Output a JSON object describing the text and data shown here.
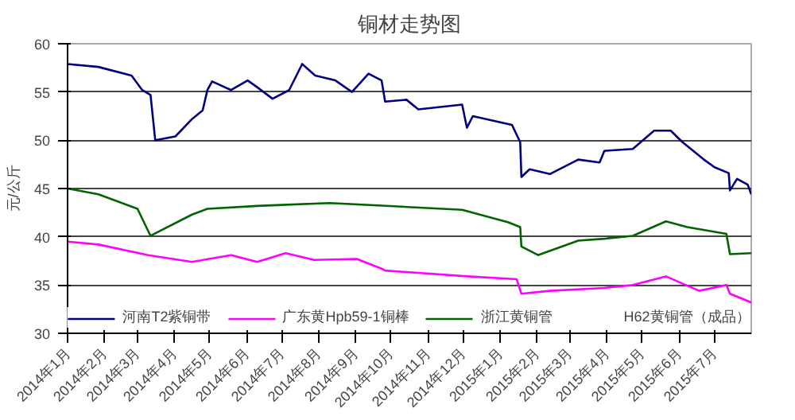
{
  "chart_data": {
    "type": "line",
    "title": "铜材走势图",
    "ylabel": "元/公斤",
    "xlim": [
      "2014-01-01",
      "2015-08-01"
    ],
    "xticks": [
      {
        "value": "2014-01-01",
        "label": "2014年1月"
      },
      {
        "value": "2014-02-01",
        "label": "2014年2月"
      },
      {
        "value": "2014-03-01",
        "label": "2014年3月"
      },
      {
        "value": "2014-04-01",
        "label": "2014年4月"
      },
      {
        "value": "2014-05-01",
        "label": "2014年5月"
      },
      {
        "value": "2014-06-01",
        "label": "2014年6月"
      },
      {
        "value": "2014-07-01",
        "label": "2014年7月"
      },
      {
        "value": "2014-08-01",
        "label": "2014年8月"
      },
      {
        "value": "2014-09-01",
        "label": "2014年9月"
      },
      {
        "value": "2014-10-01",
        "label": "2014年10月"
      },
      {
        "value": "2014-11-01",
        "label": "2014年11月"
      },
      {
        "value": "2014-12-01",
        "label": "2014年12月"
      },
      {
        "value": "2015-01-01",
        "label": "2015年1月"
      },
      {
        "value": "2015-02-01",
        "label": "2015年2月"
      },
      {
        "value": "2015-03-01",
        "label": "2015年3月"
      },
      {
        "value": "2015-04-01",
        "label": "2015年4月"
      },
      {
        "value": "2015-05-01",
        "label": "2015年5月"
      },
      {
        "value": "2015-06-01",
        "label": "2015年6月"
      },
      {
        "value": "2015-07-01",
        "label": "2015年7月"
      }
    ],
    "ylim": [
      30,
      60
    ],
    "yticks": [
      30,
      35,
      40,
      45,
      50,
      55,
      60
    ],
    "grid": "y",
    "legend": "bottom",
    "marker": "none",
    "line_style": "solid",
    "series": [
      {
        "name": "河南T2紫铜带",
        "color": "#000080",
        "x": [
          "2014-01-01",
          "2014-01-27",
          "2014-02-24",
          "2014-03-05",
          "2014-03-12",
          "2014-03-16",
          "2014-04-02",
          "2014-04-16",
          "2014-04-25",
          "2014-04-29",
          "2014-05-03",
          "2014-05-19",
          "2014-06-02",
          "2014-06-10",
          "2014-06-23",
          "2014-07-07",
          "2014-07-18",
          "2014-07-29",
          "2014-08-15",
          "2014-08-29",
          "2014-09-12",
          "2014-09-23",
          "2014-09-26",
          "2014-10-14",
          "2014-10-24",
          "2014-11-30",
          "2014-12-04",
          "2014-12-09",
          "2015-01-11",
          "2015-01-18",
          "2015-01-19",
          "2015-01-26",
          "2015-02-12",
          "2015-03-08",
          "2015-03-26",
          "2015-03-30",
          "2015-04-23",
          "2015-05-11",
          "2015-05-25",
          "2015-06-04",
          "2015-06-22",
          "2015-07-01",
          "2015-07-13",
          "2015-07-14",
          "2015-07-20",
          "2015-07-29",
          "2015-08-01"
        ],
        "values": [
          57.9,
          57.6,
          56.7,
          55.2,
          54.7,
          50.0,
          50.4,
          52.2,
          53.1,
          55.2,
          56.1,
          55.2,
          56.2,
          55.5,
          54.3,
          55.2,
          57.9,
          56.7,
          56.2,
          55.0,
          56.9,
          56.2,
          54.0,
          54.2,
          53.2,
          53.7,
          51.3,
          52.5,
          51.6,
          49.8,
          46.2,
          47.0,
          46.5,
          48.0,
          47.7,
          48.9,
          49.1,
          51.0,
          51.0,
          49.8,
          48.0,
          47.2,
          46.6,
          44.8,
          46.0,
          45.4,
          44.4
        ]
      },
      {
        "name": "广东黄Hpb59-1铜棒",
        "color": "#ff00ff",
        "x": [
          "2014-01-01",
          "2014-01-27",
          "2014-03-10",
          "2014-04-16",
          "2014-05-19",
          "2014-06-10",
          "2014-07-04",
          "2014-07-28",
          "2014-09-02",
          "2014-09-23",
          "2014-09-26",
          "2014-12-04",
          "2015-01-15",
          "2015-01-19",
          "2015-02-12",
          "2015-03-30",
          "2015-04-23",
          "2015-05-21",
          "2015-06-18",
          "2015-07-11",
          "2015-07-14",
          "2015-08-01"
        ],
        "values": [
          39.5,
          39.2,
          38.1,
          37.4,
          38.1,
          37.4,
          38.3,
          37.6,
          37.7,
          36.7,
          36.5,
          35.9,
          35.6,
          34.1,
          34.4,
          34.7,
          35.0,
          35.9,
          34.4,
          35.0,
          34.1,
          33.2
        ]
      },
      {
        "name": "浙江黄铜管",
        "color": "#006400",
        "x": [
          "2014-01-01",
          "2014-01-27",
          "2014-03-01",
          "2014-03-12",
          "2014-04-16",
          "2014-04-29",
          "2014-06-10",
          "2014-08-10",
          "2014-11-30",
          "2015-01-08",
          "2015-01-18",
          "2015-01-19",
          "2015-02-02",
          "2015-03-08",
          "2015-03-30",
          "2015-04-23",
          "2015-05-21",
          "2015-06-08",
          "2015-07-11",
          "2015-07-14",
          "2015-08-01"
        ],
        "values": [
          45.0,
          44.4,
          42.9,
          40.1,
          42.3,
          42.9,
          43.2,
          43.5,
          42.8,
          41.5,
          41.0,
          39.0,
          38.1,
          39.6,
          39.8,
          40.1,
          41.6,
          41.0,
          40.3,
          38.2,
          38.3
        ]
      }
    ],
    "annotations": [
      "H62黄铜管（成品）"
    ]
  }
}
